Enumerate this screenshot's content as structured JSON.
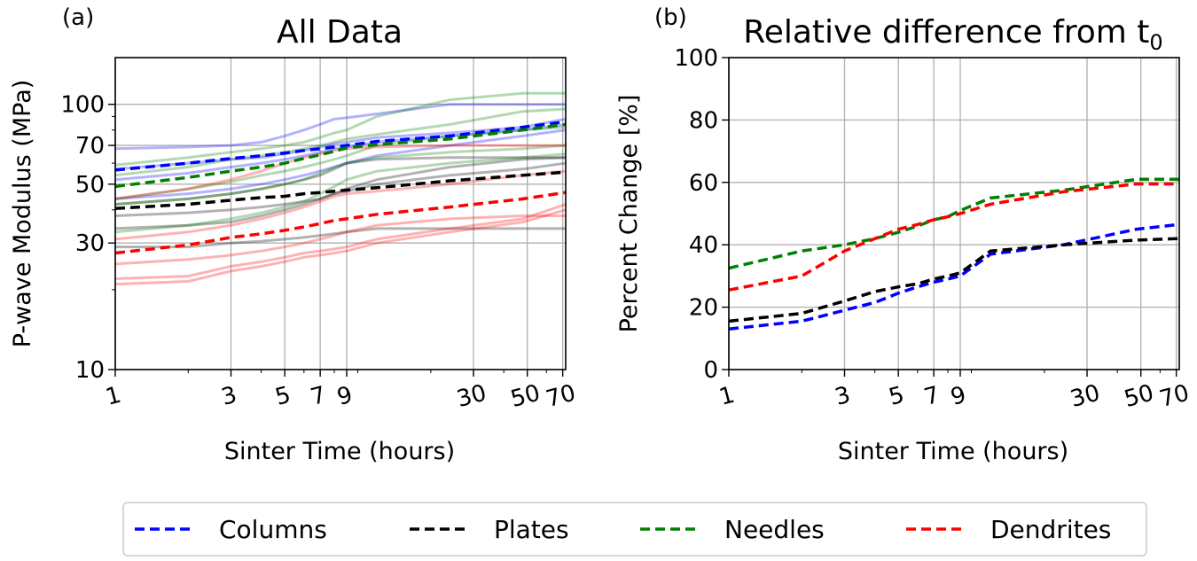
{
  "chart_data": [
    {
      "panel_label": "(a)",
      "type": "line",
      "title": "All Data",
      "xlabel": "Sinter Time (hours)",
      "ylabel": "P-wave Modulus (MPa)",
      "xscale": "log",
      "yscale": "log",
      "xlim": [
        1,
        72
      ],
      "ylim": [
        10,
        150
      ],
      "x_tick_labels": [
        "1",
        "3",
        "5",
        "7",
        "9",
        "30",
        "50",
        "70"
      ],
      "x_ticks": [
        1,
        3,
        5,
        7,
        9,
        30,
        50,
        70
      ],
      "y_tick_labels": [
        "10",
        "30",
        "50",
        "70",
        "100"
      ],
      "y_ticks": [
        10,
        30,
        50,
        70,
        100
      ],
      "grid": true,
      "x": [
        1,
        2,
        3,
        4,
        5,
        6,
        7,
        8,
        9,
        12,
        24,
        48,
        72
      ],
      "mean_series": [
        {
          "name": "Columns",
          "color": "#0000ff",
          "values": [
            56.5,
            60,
            62.5,
            64,
            65.5,
            67,
            68,
            69,
            70,
            72.5,
            76,
            82,
            86
          ]
        },
        {
          "name": "Plates",
          "color": "#000000",
          "values": [
            40.5,
            42,
            43.5,
            44.5,
            45,
            46,
            46.5,
            47,
            47.5,
            48.5,
            51.5,
            54,
            55.5
          ]
        },
        {
          "name": "Needles",
          "color": "#008000",
          "values": [
            49,
            53,
            56,
            58,
            60,
            62.5,
            64.5,
            66.5,
            68.5,
            70.5,
            74,
            80,
            84
          ]
        },
        {
          "name": "Dendrites",
          "color": "#ff0000",
          "values": [
            27.5,
            29.5,
            31.5,
            32.5,
            33.5,
            34.5,
            35.5,
            36.5,
            37,
            38.5,
            41,
            44,
            46.5
          ]
        }
      ],
      "sample_series": [
        {
          "color": "#0000ff",
          "values": [
            68,
            69,
            70,
            72,
            76,
            80,
            84,
            88,
            89,
            92,
            100,
            100,
            100
          ]
        },
        {
          "color": "#0000ff",
          "values": [
            57,
            60,
            62,
            63,
            65,
            67,
            69,
            71,
            72,
            75,
            78,
            82,
            88
          ]
        },
        {
          "color": "#0000ff",
          "values": [
            52,
            55,
            58,
            60,
            62,
            64,
            66,
            68,
            69,
            72,
            76,
            80,
            84
          ]
        },
        {
          "color": "#0000ff",
          "values": [
            44,
            46,
            48,
            50,
            52,
            54,
            56,
            58,
            60,
            64,
            70,
            76,
            80
          ]
        },
        {
          "color": "#000000",
          "values": [
            42,
            44,
            46,
            48,
            50,
            52,
            54,
            57,
            60,
            62,
            63,
            63,
            63
          ]
        },
        {
          "color": "#000000",
          "values": [
            38,
            39,
            40,
            41,
            42,
            43,
            44,
            46,
            47,
            50,
            54,
            57,
            60
          ]
        },
        {
          "color": "#000000",
          "values": [
            34,
            35,
            36,
            38,
            40,
            42,
            44,
            46,
            48,
            52,
            58,
            62,
            63
          ]
        },
        {
          "color": "#000000",
          "values": [
            29,
            29,
            30,
            30.5,
            31,
            31.5,
            32,
            32.5,
            33,
            34,
            34,
            34,
            34
          ]
        },
        {
          "color": "#008000",
          "values": [
            59,
            63,
            66,
            68,
            70,
            72,
            75,
            78,
            80,
            90,
            104,
            110,
            110
          ]
        },
        {
          "color": "#008000",
          "values": [
            54,
            58,
            62,
            64,
            66,
            68,
            70,
            72,
            74,
            77,
            84,
            94,
            96
          ]
        },
        {
          "color": "#008000",
          "values": [
            44,
            48,
            51,
            54,
            56,
            58,
            60,
            62,
            64,
            70,
            76,
            80,
            82
          ]
        },
        {
          "color": "#008000",
          "values": [
            42,
            44,
            46,
            48,
            50,
            52,
            55,
            58,
            60,
            63,
            66,
            68,
            70
          ]
        },
        {
          "color": "#008000",
          "values": [
            33,
            35,
            37,
            39,
            41,
            43,
            46,
            49,
            52,
            56,
            60,
            63,
            65
          ]
        },
        {
          "color": "#ff0000",
          "values": [
            44,
            48,
            52,
            56,
            60,
            63,
            65,
            67,
            68,
            69,
            70,
            70,
            70
          ]
        },
        {
          "color": "#ff0000",
          "values": [
            31,
            33,
            35,
            37,
            39,
            41,
            43,
            45,
            46,
            47,
            50,
            54,
            56
          ]
        },
        {
          "color": "#ff0000",
          "values": [
            25,
            26,
            27,
            28,
            29,
            30,
            31,
            32,
            33,
            35,
            37,
            38,
            38
          ]
        },
        {
          "color": "#ff0000",
          "values": [
            22,
            22.5,
            24.5,
            25.5,
            26.5,
            27.5,
            28,
            28.5,
            29,
            31,
            34,
            37,
            42
          ]
        },
        {
          "color": "#ff0000",
          "values": [
            21,
            21.5,
            23.5,
            24.5,
            25.5,
            26.5,
            27,
            27.5,
            28,
            30,
            33,
            36,
            40
          ]
        }
      ]
    },
    {
      "panel_label": "(b)",
      "type": "line",
      "title": "Relative difference from t",
      "title_subscript": "0",
      "xlabel": "Sinter Time (hours)",
      "ylabel": "Percent Change [%]",
      "xscale": "log",
      "xlim": [
        1,
        72
      ],
      "ylim": [
        0,
        100
      ],
      "x_tick_labels": [
        "1",
        "3",
        "5",
        "7",
        "9",
        "30",
        "50",
        "70"
      ],
      "x_ticks": [
        1,
        3,
        5,
        7,
        9,
        30,
        50,
        70
      ],
      "y_tick_labels": [
        "0",
        "20",
        "40",
        "60",
        "80",
        "100"
      ],
      "y_ticks": [
        0,
        20,
        40,
        60,
        80,
        100
      ],
      "grid": true,
      "x": [
        1,
        2,
        3,
        4,
        5,
        6,
        7,
        8,
        9,
        12,
        24,
        48,
        72
      ],
      "series": [
        {
          "name": "Columns",
          "color": "#0000ff",
          "values": [
            13,
            15.5,
            19,
            21.5,
            24.5,
            26.5,
            28,
            29,
            30,
            37,
            40,
            45,
            46.5
          ]
        },
        {
          "name": "Plates",
          "color": "#000000",
          "values": [
            15.5,
            18,
            22,
            25,
            26.5,
            27.5,
            29,
            30,
            31,
            38,
            40,
            41.5,
            42
          ]
        },
        {
          "name": "Needles",
          "color": "#008000",
          "values": [
            32.5,
            38,
            40,
            42,
            44,
            46,
            48,
            49,
            51,
            55,
            57.5,
            61,
            61
          ]
        },
        {
          "name": "Dendrites",
          "color": "#ff0000",
          "values": [
            25.5,
            30,
            38,
            42,
            45,
            46.5,
            48,
            49,
            50,
            53,
            57,
            59.5,
            59.5
          ]
        }
      ]
    }
  ],
  "legend": {
    "placement": "bottom",
    "items": [
      {
        "label": "Columns",
        "color": "#0000ff"
      },
      {
        "label": "Plates",
        "color": "#000000"
      },
      {
        "label": "Needles",
        "color": "#008000"
      },
      {
        "label": "Dendrites",
        "color": "#ff0000"
      }
    ]
  }
}
